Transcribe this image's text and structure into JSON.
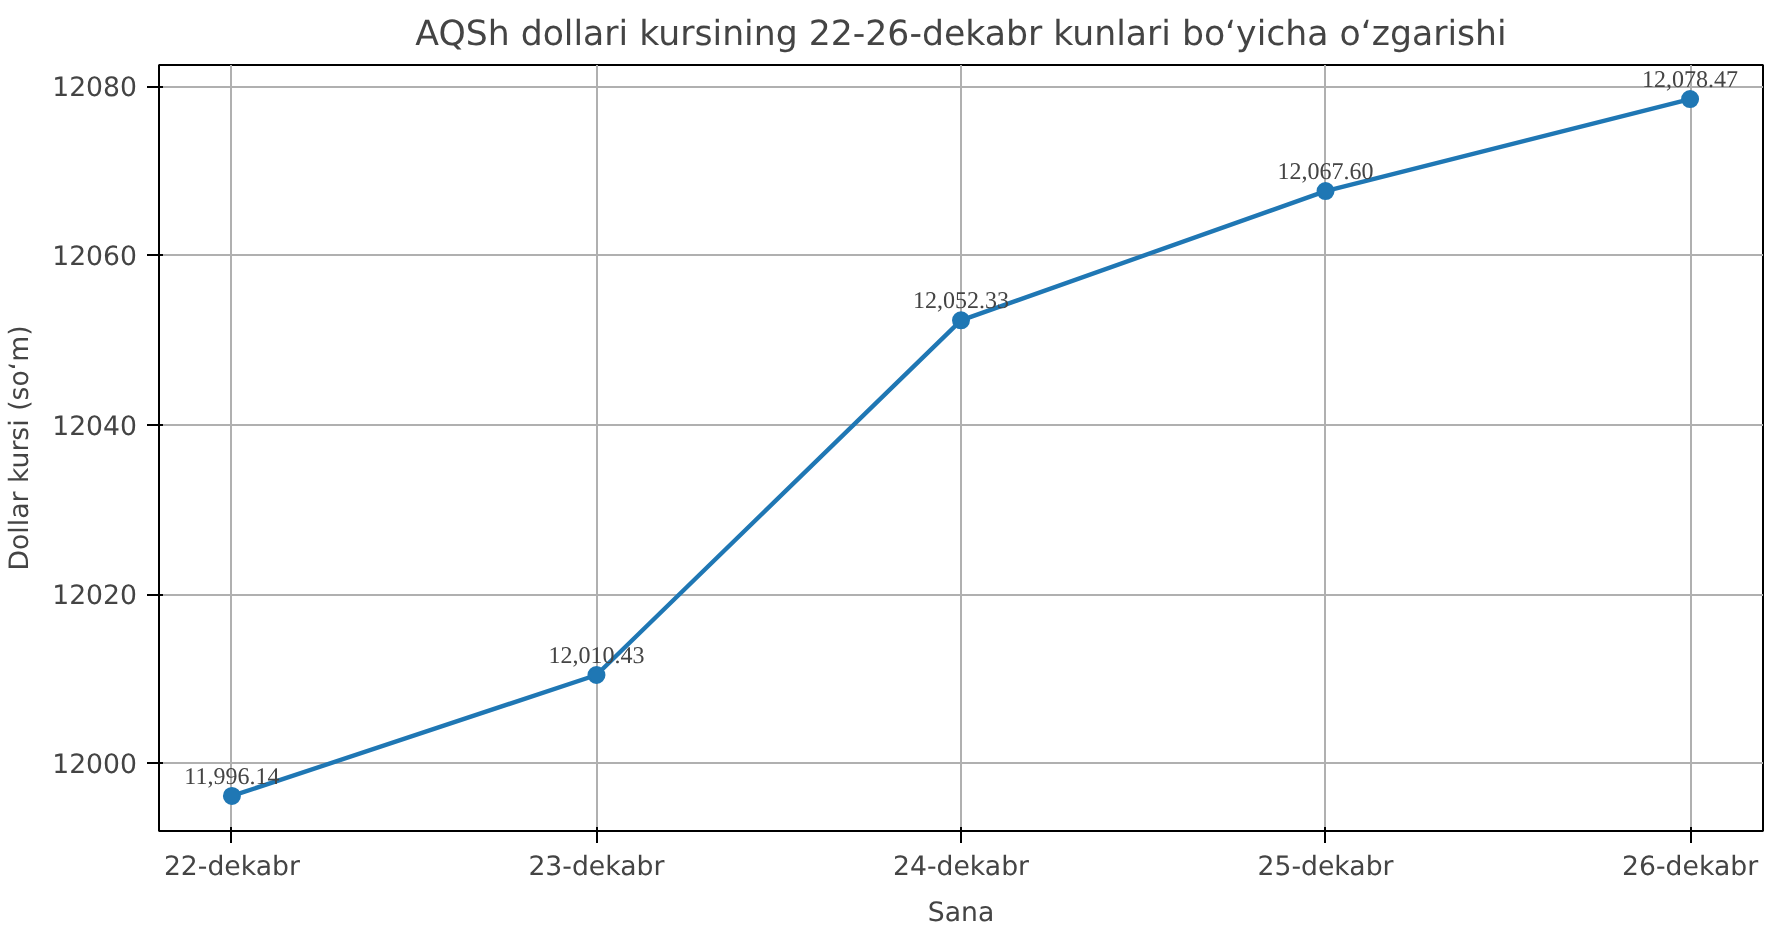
{
  "chart_data": {
    "type": "line",
    "title": "AQSh dollari kursining 22-26-dekabr kunlari bo‘yicha o‘zgarishi",
    "xlabel": "Sana",
    "ylabel": "Dollar kursi (so‘m)",
    "categories": [
      "22-dekabr",
      "23-dekabr",
      "24-dekabr",
      "25-dekabr",
      "26-dekabr"
    ],
    "series": [
      {
        "color": "#1f77b4",
        "values": [
          11996.14,
          12010.43,
          12052.33,
          12067.6,
          12078.47
        ],
        "value_labels": [
          "11,996.14",
          "12,010.43",
          "12,052.33",
          "12,067.60",
          "12,078.47"
        ]
      }
    ],
    "ylim": [
      11992,
      12082.5
    ],
    "yticks": [
      12000,
      12020,
      12040,
      12060,
      12080
    ],
    "grid": true,
    "marker": "circle",
    "line_style": "solid"
  }
}
